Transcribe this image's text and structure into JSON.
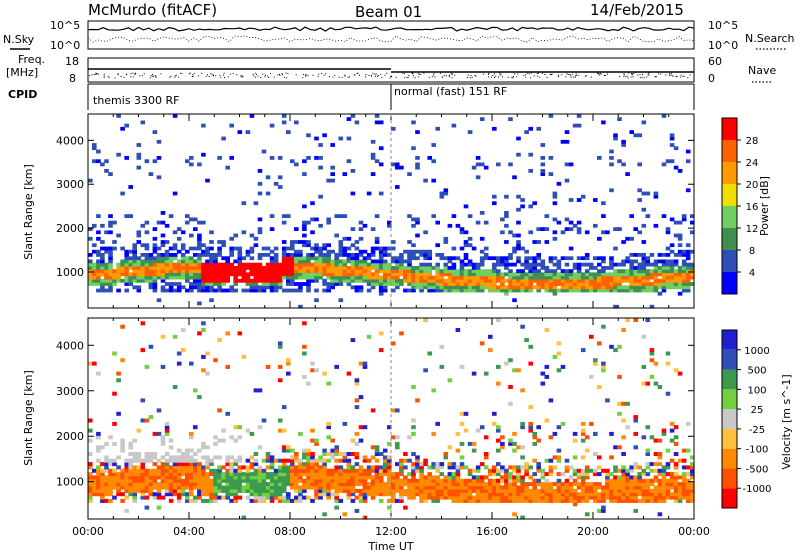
{
  "header": {
    "station": "McMurdo (fitACF)",
    "beam": "Beam 01",
    "date": "14/Feb/2015"
  },
  "top_strip": {
    "left_label": "N.Sky",
    "right_label": "N.Search",
    "y_ticks": [
      "10^5",
      "10^0"
    ]
  },
  "freq_strip": {
    "left_label_1": "Freq.",
    "left_label_2": "[MHz]",
    "left_ticks": [
      "18",
      "8"
    ],
    "right_label": "Nave",
    "right_ticks": [
      "60",
      "0"
    ]
  },
  "cpid": {
    "label": "CPID",
    "modes": [
      "themis 3300 RF",
      "normal (fast) 151 RF"
    ]
  },
  "colors": {
    "power_scale": [
      "#0000ff",
      "#2f4fb8",
      "#3f9050",
      "#6fcf60",
      "#f0e000",
      "#ff9a00",
      "#ff6000",
      "#ff0000"
    ],
    "velocity_scale": [
      "#ff0000",
      "#ff5000",
      "#ff8a00",
      "#ffc040",
      "#c8c8c8",
      "#70d040",
      "#3c9a50",
      "#2f4fb8",
      "#2020d0"
    ]
  },
  "chart_data": [
    {
      "type": "heatmap",
      "title": "",
      "xlabel": "",
      "ylabel": "Slant Range [km]",
      "x_ticks": [
        "00:00",
        "04:00",
        "08:00",
        "12:00",
        "16:00",
        "20:00",
        "00:00"
      ],
      "y_ticks": [
        "1000",
        "2000",
        "3000",
        "4000"
      ],
      "ylim": [
        180,
        4600
      ],
      "colorbar": {
        "label": "Power [dB]",
        "ticks": [
          "4",
          "8",
          "12",
          "16",
          "20",
          "24",
          "28"
        ],
        "range": [
          0,
          32
        ]
      }
    },
    {
      "type": "heatmap",
      "title": "",
      "xlabel": "Time UT",
      "ylabel": "Slant Range [km]",
      "x_ticks": [
        "00:00",
        "04:00",
        "08:00",
        "12:00",
        "16:00",
        "20:00",
        "00:00"
      ],
      "y_ticks": [
        "1000",
        "2000",
        "3000",
        "4000"
      ],
      "ylim": [
        180,
        4600
      ],
      "colorbar": {
        "label": "Velocity [m s^-1]",
        "ticks": [
          "1000",
          "500",
          "100",
          "25",
          "-25",
          "-100",
          "-500",
          "-1000"
        ]
      }
    }
  ]
}
